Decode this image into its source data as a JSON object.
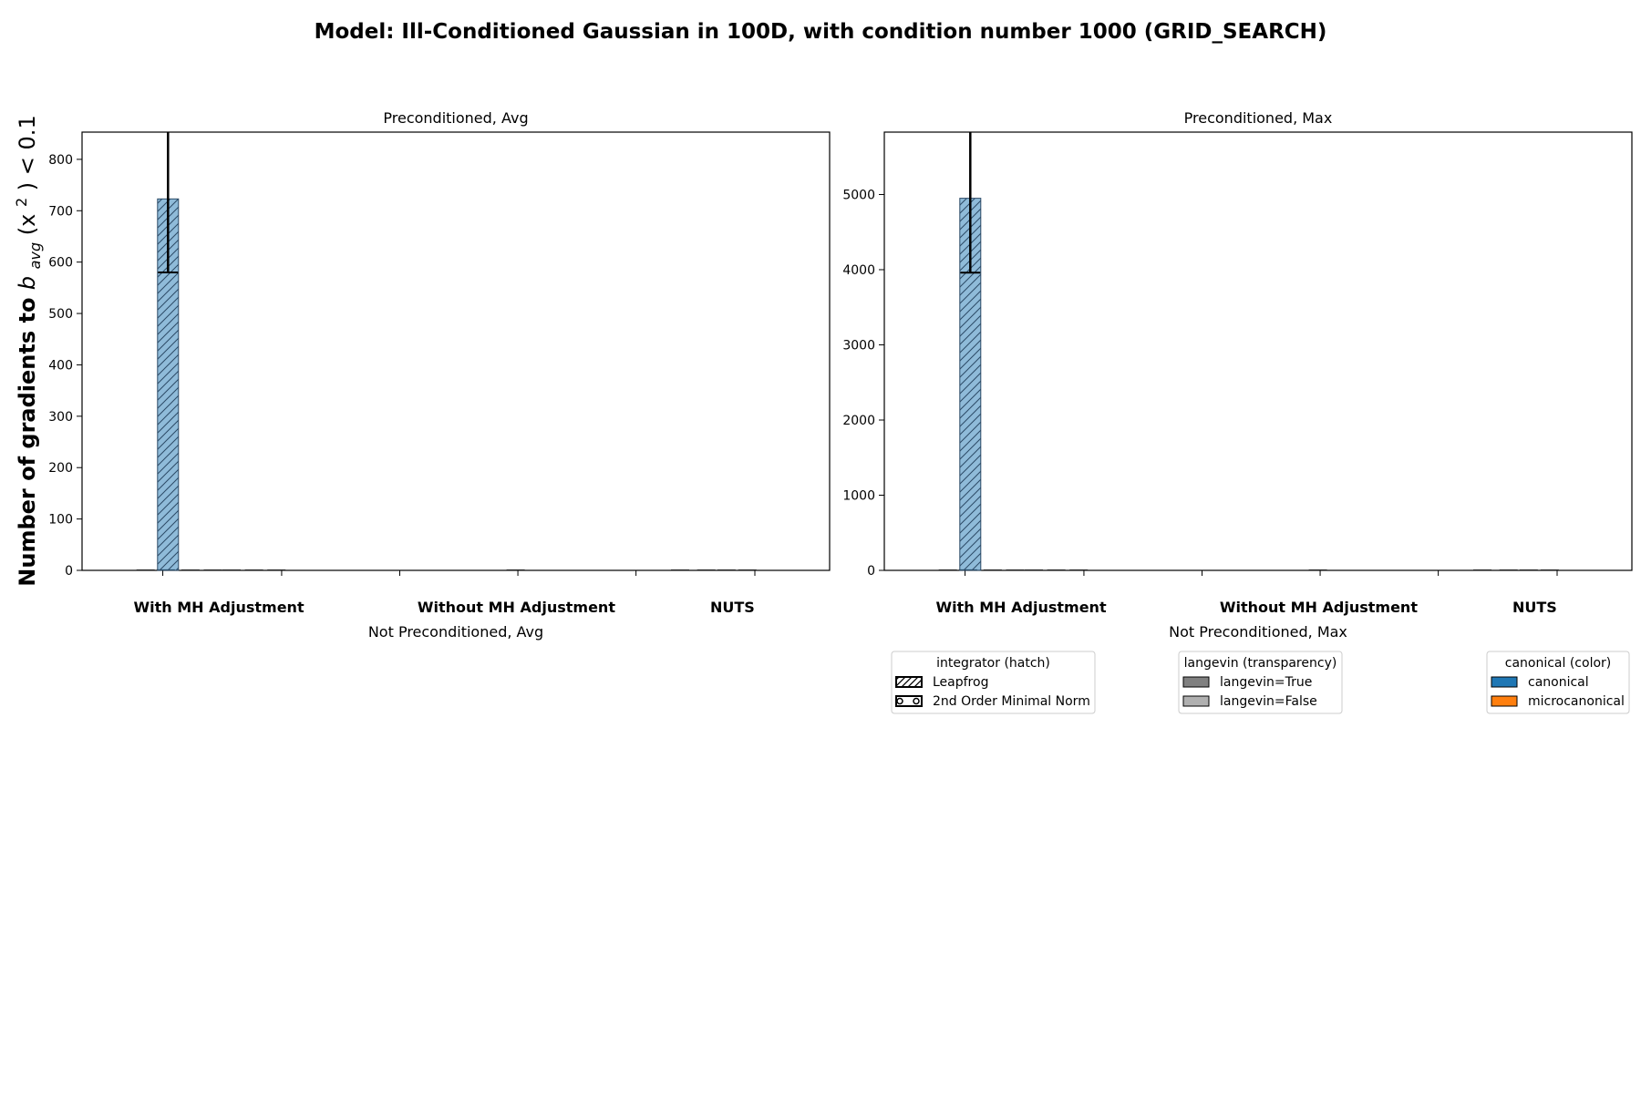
{
  "figure": {
    "title": "Model: Ill-Conditioned Gaussian in 100D, with condition number 1000 (GRID_SEARCH)",
    "ylabel_prefix": "Number of gradients to ",
    "ylabel_math_b": "b",
    "ylabel_math_sub": "avg",
    "ylabel_math_rest": "(x",
    "ylabel_math_sup": "2",
    "ylabel_math_end": ") < 0.1"
  },
  "chart_data": [
    {
      "type": "bar",
      "title": "Preconditioned, Avg",
      "xlabel": "Not Preconditioned, Avg",
      "groups": [
        "With MH Adjustment",
        "Without MH Adjustment",
        "NUTS"
      ],
      "yticks": [
        "0",
        "100",
        "200",
        "300",
        "400",
        "500",
        "600",
        "700",
        "800"
      ],
      "ylim": [
        0,
        853
      ],
      "bars": [
        {
          "group": "With MH Adjustment",
          "integrator": "Leapfrog",
          "langevin": true,
          "canonical": true,
          "value": 723,
          "err_low": 580,
          "err_high": 900
        }
      ],
      "grid": false
    },
    {
      "type": "bar",
      "title": "Preconditioned, Max",
      "xlabel": "Not Preconditioned, Max",
      "groups": [
        "With MH Adjustment",
        "Without MH Adjustment",
        "NUTS"
      ],
      "yticks": [
        "0",
        "1000",
        "2000",
        "3000",
        "4000",
        "5000"
      ],
      "ylim": [
        0,
        5830
      ],
      "bars": [
        {
          "group": "With MH Adjustment",
          "integrator": "Leapfrog",
          "langevin": true,
          "canonical": true,
          "value": 4950,
          "err_low": 3960,
          "err_high": 6100
        }
      ],
      "grid": false
    }
  ],
  "legends": [
    {
      "title": "integrator (hatch)",
      "items": [
        {
          "label": "Leapfrog",
          "swatch": "hatch-diag"
        },
        {
          "label": "2nd Order Minimal Norm",
          "swatch": "hatch-circle"
        }
      ]
    },
    {
      "title": "langevin (transparency)",
      "items": [
        {
          "label": "langevin=True",
          "swatch": "gray-dark"
        },
        {
          "label": "langevin=False",
          "swatch": "gray-light"
        }
      ]
    },
    {
      "title": "canonical (color)",
      "items": [
        {
          "label": "canonical",
          "swatch": "blue"
        },
        {
          "label": "microcanonical",
          "swatch": "orange"
        }
      ]
    }
  ],
  "colors": {
    "canonical": "#1f77b4",
    "microcanonical": "#ff7f0e",
    "langevin_true_gray": "#808080",
    "langevin_false_gray": "#b0b0b0"
  }
}
